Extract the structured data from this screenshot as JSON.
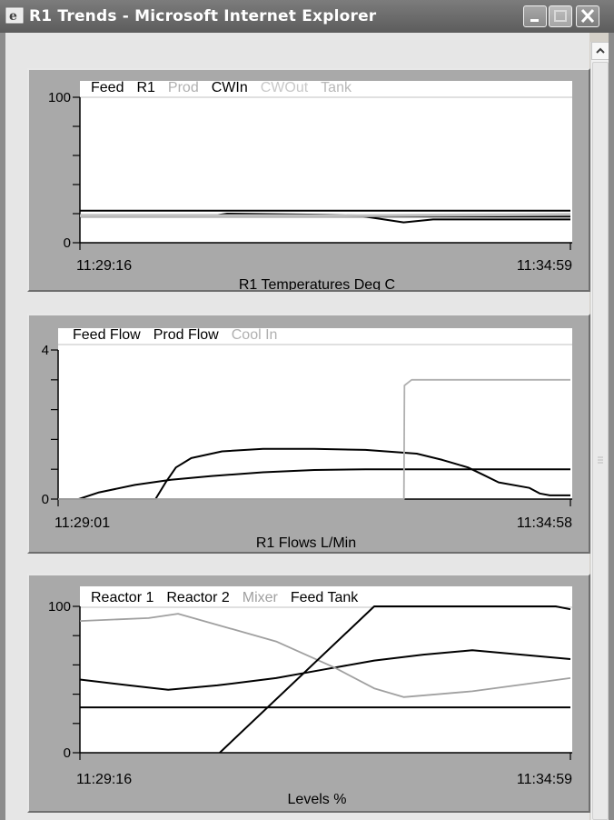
{
  "window": {
    "title": "R1 Trends - Microsoft Internet Explorer"
  },
  "chart_data": [
    {
      "type": "line",
      "title": "R1 Temperatures Deg C",
      "xlabel": "R1 Temperatures Deg C",
      "ylim": [
        0,
        100
      ],
      "y_tick_labels": [
        "0",
        "100"
      ],
      "x_tick_labels": [
        "11:29:16",
        "11:34:59"
      ],
      "legend_position": "top",
      "series": [
        {
          "name": "Feed",
          "color": "#000000",
          "x": [
            0,
            0.2,
            0.45,
            0.56,
            0.62,
            0.66,
            0.72,
            1.0
          ],
          "values": [
            22,
            22,
            22,
            22,
            22,
            22,
            22,
            22
          ]
        },
        {
          "name": "R1",
          "color": "#000000",
          "x": [
            0,
            0.28,
            0.3,
            0.56,
            0.6,
            0.66,
            0.72,
            1.0
          ],
          "values": [
            19,
            19,
            20,
            19,
            17,
            14,
            16,
            16
          ]
        },
        {
          "name": "Prod",
          "color": "#b0b0b0",
          "x": [
            0,
            0.5,
            1.0
          ],
          "values": [
            19,
            19,
            19
          ]
        },
        {
          "name": "CWIn",
          "color": "#000000",
          "x": [
            0,
            0.5,
            1.0
          ],
          "values": [
            18,
            18,
            18
          ]
        },
        {
          "name": "CWOut",
          "color": "#c8c8c8",
          "x": [
            0,
            0.5,
            1.0
          ],
          "values": [
            19,
            19,
            20
          ]
        },
        {
          "name": "Tank",
          "color": "#b8b8b8",
          "x": [
            0,
            0.5,
            1.0
          ],
          "values": [
            18,
            18,
            19
          ]
        }
      ]
    },
    {
      "type": "line",
      "title": "R1 Flows L/Min",
      "xlabel": "R1 Flows L/Min",
      "ylim": [
        0,
        4
      ],
      "y_tick_labels": [
        "0",
        "4"
      ],
      "x_tick_labels": [
        "11:29:01",
        "11:34:58"
      ],
      "legend_position": "top",
      "series": [
        {
          "name": "Feed Flow",
          "color": "#000000",
          "x": [
            0,
            0.04,
            0.08,
            0.15,
            0.22,
            0.3,
            0.4,
            0.5,
            0.6,
            0.7,
            0.8,
            0.9,
            1.0
          ],
          "values": [
            0,
            0,
            0.18,
            0.38,
            0.52,
            0.62,
            0.72,
            0.78,
            0.8,
            0.8,
            0.8,
            0.8,
            0.8
          ]
        },
        {
          "name": "Prod Flow",
          "color": "#000000",
          "x": [
            0,
            0.19,
            0.21,
            0.23,
            0.26,
            0.32,
            0.4,
            0.5,
            0.6,
            0.7,
            0.75,
            0.8,
            0.83,
            0.86,
            0.92,
            0.94,
            0.96,
            1.0
          ],
          "values": [
            0,
            0,
            0.45,
            0.85,
            1.1,
            1.28,
            1.35,
            1.35,
            1.32,
            1.22,
            1.05,
            0.85,
            0.65,
            0.45,
            0.3,
            0.15,
            0.1,
            0.1
          ]
        },
        {
          "name": "Cool In",
          "color": "#b0b0b0",
          "x": [
            0,
            0.675,
            0.676,
            0.69,
            1.0
          ],
          "values": [
            0,
            0,
            3.05,
            3.2,
            3.2
          ]
        }
      ]
    },
    {
      "type": "line",
      "title": "Levels %",
      "xlabel": "Levels %",
      "ylim": [
        0,
        100
      ],
      "y_tick_labels": [
        "0",
        "100"
      ],
      "x_tick_labels": [
        "11:29:16",
        "11:34:59"
      ],
      "legend_position": "top",
      "series": [
        {
          "name": "Reactor 1",
          "color": "#000000",
          "x": [
            0,
            0.1,
            0.18,
            0.28,
            0.4,
            0.5,
            0.6,
            0.7,
            0.8,
            0.9,
            1.0
          ],
          "values": [
            50,
            46,
            43,
            46,
            51,
            57,
            63,
            67,
            70,
            67,
            64
          ]
        },
        {
          "name": "Reactor 2",
          "color": "#000000",
          "x": [
            0,
            0.25,
            0.5,
            0.75,
            1.0
          ],
          "values": [
            31,
            31,
            31,
            31,
            31
          ]
        },
        {
          "name": "Mixer",
          "color": "#a0a0a0",
          "x": [
            0,
            0.14,
            0.2,
            0.4,
            0.52,
            0.6,
            0.66,
            0.8,
            1.0
          ],
          "values": [
            90,
            92,
            95,
            76,
            58,
            44,
            38,
            42,
            51
          ]
        },
        {
          "name": "Feed Tank",
          "color": "#000000",
          "x": [
            0,
            0.285,
            0.6,
            0.61,
            0.97,
            1.0
          ],
          "values": [
            null,
            0,
            100,
            100,
            100,
            98
          ]
        }
      ]
    }
  ]
}
